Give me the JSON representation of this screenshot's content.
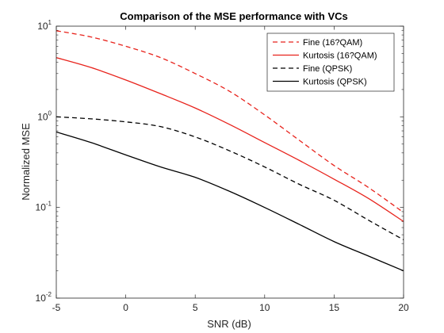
{
  "chart_data": {
    "type": "line",
    "title": "Comparison of the MSE performance with VCs",
    "xlabel": "SNR (dB)",
    "ylabel": "Normalized MSE",
    "xlim": [
      -5,
      20
    ],
    "ylim": [
      0.01,
      10
    ],
    "yscale": "log",
    "grid": false,
    "legend_position": "top-right",
    "x_ticks": [
      "-5",
      "0",
      "5",
      "10",
      "15",
      "20"
    ],
    "y_ticks": [
      {
        "base": "10",
        "exp": "1"
      },
      {
        "base": "10",
        "exp": "0"
      },
      {
        "base": "10",
        "exp": "-1"
      },
      {
        "base": "10",
        "exp": "-2"
      }
    ],
    "x": [
      -5,
      -2.5,
      0,
      2.5,
      5,
      7.5,
      10,
      12.5,
      15,
      17.5,
      20
    ],
    "series": [
      {
        "name": "Fine (16?QAM)",
        "color": "#e8231c",
        "dash": "dashed",
        "values": [
          8.9,
          7.6,
          6.0,
          4.5,
          3.0,
          1.9,
          1.05,
          0.55,
          0.29,
          0.165,
          0.088
        ]
      },
      {
        "name": "Kurtosis (16?QAM)",
        "color": "#e8231c",
        "dash": "solid",
        "values": [
          4.5,
          3.5,
          2.55,
          1.8,
          1.25,
          0.82,
          0.52,
          0.33,
          0.205,
          0.125,
          0.07
        ]
      },
      {
        "name": "Fine (QPSK)",
        "color": "#000000",
        "dash": "dashed",
        "values": [
          1.0,
          0.95,
          0.88,
          0.78,
          0.6,
          0.42,
          0.28,
          0.18,
          0.12,
          0.072,
          0.044
        ]
      },
      {
        "name": "Kurtosis (QPSK)",
        "color": "#000000",
        "dash": "solid",
        "values": [
          0.68,
          0.52,
          0.38,
          0.28,
          0.215,
          0.15,
          0.1,
          0.065,
          0.042,
          0.029,
          0.02
        ]
      }
    ]
  }
}
